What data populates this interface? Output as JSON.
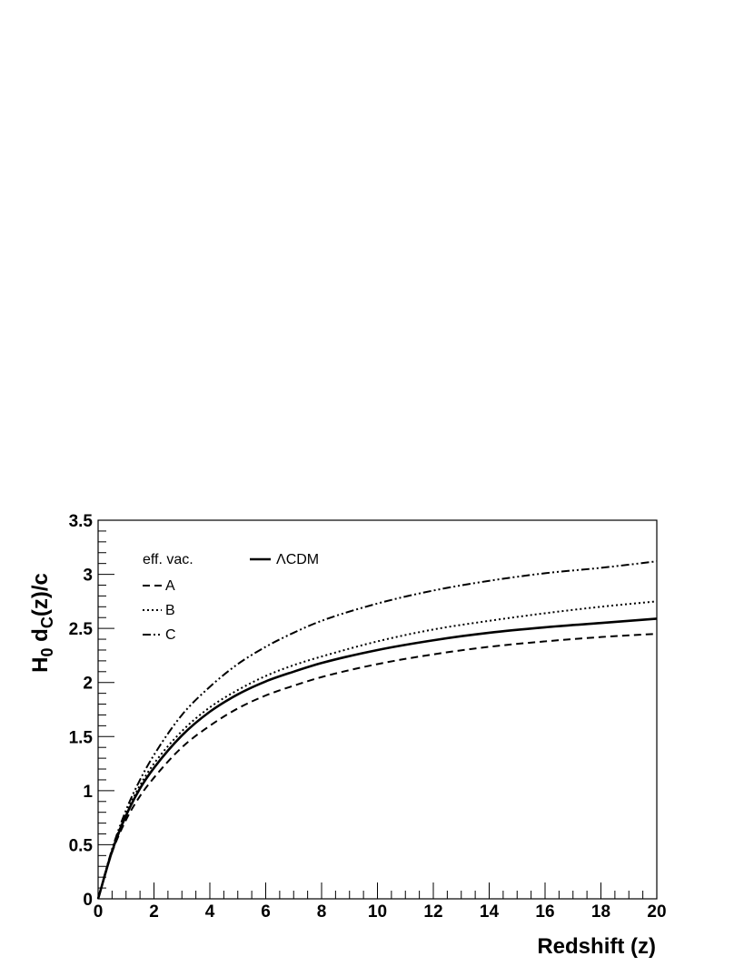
{
  "chart_data": {
    "type": "line",
    "xlabel": "Redshift (z)",
    "ylabel_main": "H",
    "ylabel_sub0": "0",
    "ylabel_mid": " d",
    "ylabel_subC": "C",
    "ylabel_end": "(z)/c",
    "xlim": [
      0,
      20
    ],
    "ylim": [
      0,
      3.5
    ],
    "x_ticks": [
      "0",
      "2",
      "4",
      "6",
      "8",
      "10",
      "12",
      "14",
      "16",
      "18",
      "20"
    ],
    "y_ticks": [
      "0",
      "0.5",
      "1",
      "1.5",
      "2",
      "2.5",
      "3",
      "3.5"
    ],
    "grid": false,
    "legend": {
      "placement": "top-left",
      "group_title": "eff. vac."
    },
    "x": [
      0,
      0.5,
      1,
      1.5,
      2,
      3,
      4,
      5,
      6,
      7,
      8,
      10,
      12,
      14,
      16,
      18,
      20
    ],
    "series": [
      {
        "name": "ΛCDM",
        "style": "solid",
        "values": [
          0,
          0.44,
          0.77,
          1.02,
          1.21,
          1.51,
          1.73,
          1.89,
          2.01,
          2.1,
          2.18,
          2.3,
          2.39,
          2.46,
          2.51,
          2.55,
          2.59
        ]
      },
      {
        "name": "A",
        "style": "dashed",
        "values": [
          0,
          0.43,
          0.73,
          0.95,
          1.12,
          1.4,
          1.6,
          1.76,
          1.88,
          1.97,
          2.05,
          2.17,
          2.26,
          2.33,
          2.38,
          2.42,
          2.45
        ]
      },
      {
        "name": "B",
        "style": "dotted",
        "values": [
          0,
          0.45,
          0.79,
          1.05,
          1.25,
          1.55,
          1.77,
          1.93,
          2.06,
          2.16,
          2.24,
          2.38,
          2.49,
          2.57,
          2.64,
          2.7,
          2.75
        ]
      },
      {
        "name": "C",
        "style": "dashdot",
        "values": [
          0,
          0.46,
          0.82,
          1.1,
          1.33,
          1.7,
          1.96,
          2.17,
          2.33,
          2.46,
          2.57,
          2.73,
          2.85,
          2.94,
          3.01,
          3.06,
          3.12
        ]
      }
    ]
  }
}
